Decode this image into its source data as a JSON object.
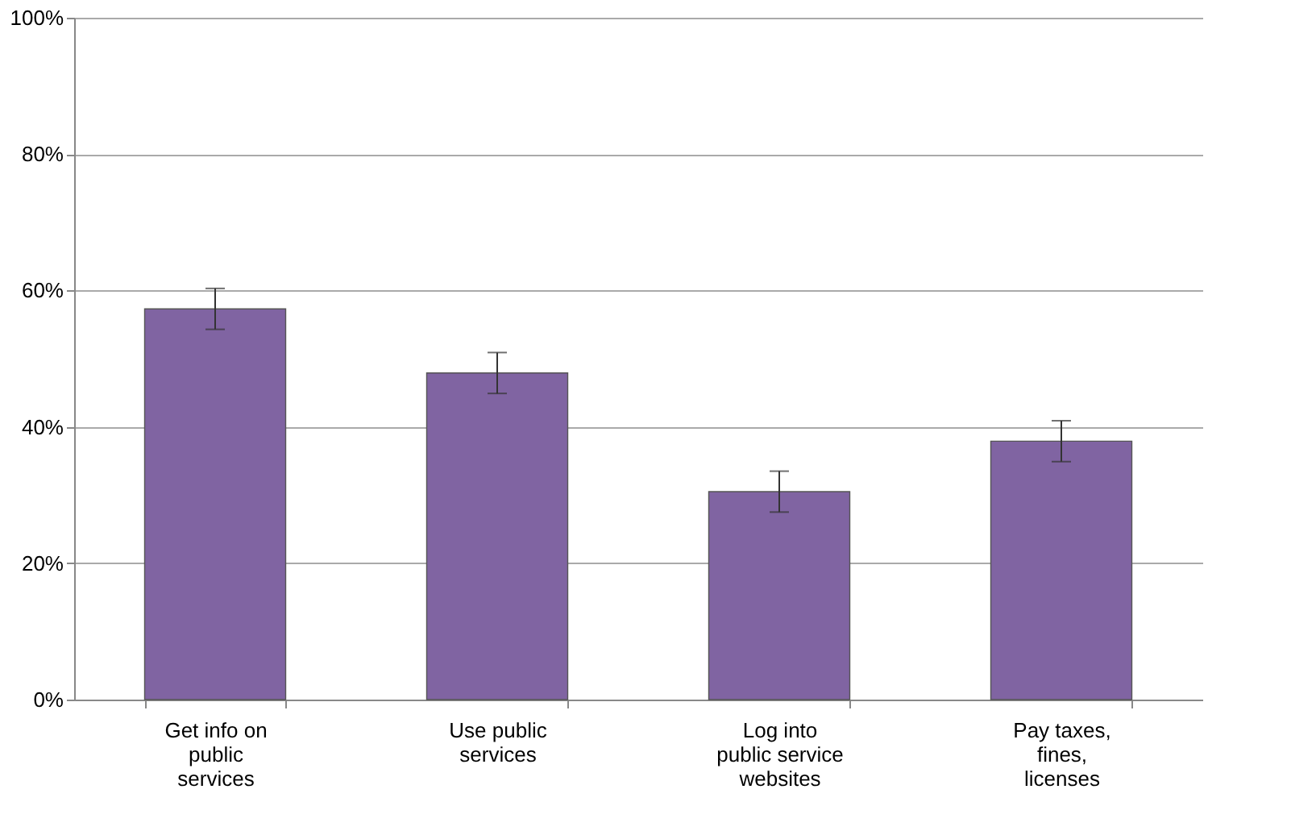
{
  "chart_data": {
    "type": "bar",
    "categories": [
      "Get info on public services",
      "Use public services",
      "Log into public service websites",
      "Pay taxes, fines, licenses"
    ],
    "values": [
      57.3,
      47.9,
      30.5,
      37.9
    ],
    "errors": [
      3,
      3,
      3,
      3
    ],
    "color": "#8064a2",
    "ylim": [
      0,
      100
    ],
    "yticks": [
      {
        "value": 0,
        "label": "0%"
      },
      {
        "value": 20,
        "label": "20%"
      },
      {
        "value": 40,
        "label": "40%"
      },
      {
        "value": 60,
        "label": "60%"
      },
      {
        "value": 80,
        "label": "80%"
      },
      {
        "value": 100,
        "label": "100%"
      }
    ],
    "grid": "y"
  }
}
